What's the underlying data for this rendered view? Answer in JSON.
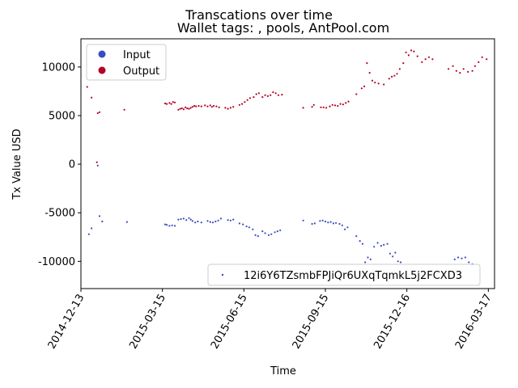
{
  "chart_data": {
    "type": "scatter",
    "title": "Transcations over time",
    "subtitle": "Wallet tags: , pools, AntPool.com",
    "xlabel": "Time",
    "ylabel": "Tx Value USD",
    "x_ticks": [
      "2014-12-13",
      "2015-03-15",
      "2015-06-15",
      "2015-09-15",
      "2015-12-16",
      "2016-03-17"
    ],
    "xlim": [
      "2014-12-13",
      "2016-03-24"
    ],
    "ylim": [
      -12800,
      12900
    ],
    "y_ticks": [
      -10000,
      -5000,
      0,
      5000,
      10000
    ],
    "grid": false,
    "legend_top_left": {
      "entries": [
        {
          "label": "Input",
          "color": "#3b4cc0"
        },
        {
          "label": "Output",
          "color": "#b40426"
        }
      ]
    },
    "legend_bottom_right": {
      "entries": [
        {
          "label": "12i6Y6TZsmbFPJiQr6UXqTqmkL5j2FCXD3",
          "color": "#3b4cc0"
        }
      ]
    },
    "series": [
      {
        "name": "Output",
        "color": "#b40426",
        "points": [
          [
            "2014-12-20",
            7950
          ],
          [
            "2014-12-25",
            6850
          ],
          [
            "2014-12-31",
            200
          ],
          [
            "2015-01-01",
            5250
          ],
          [
            "2015-01-03",
            5350
          ],
          [
            "2015-01-31",
            5600
          ],
          [
            "2015-03-18",
            6250
          ],
          [
            "2015-03-20",
            6200
          ],
          [
            "2015-03-23",
            6300
          ],
          [
            "2015-03-25",
            6200
          ],
          [
            "2015-03-27",
            6400
          ],
          [
            "2015-03-29",
            6350
          ],
          [
            "2015-04-02",
            5600
          ],
          [
            "2015-04-04",
            5700
          ],
          [
            "2015-04-06",
            5750
          ],
          [
            "2015-04-08",
            5650
          ],
          [
            "2015-04-10",
            5850
          ],
          [
            "2015-04-12",
            5750
          ],
          [
            "2015-04-14",
            5700
          ],
          [
            "2015-04-16",
            5800
          ],
          [
            "2015-04-18",
            5900
          ],
          [
            "2015-04-20",
            6000
          ],
          [
            "2015-04-22",
            5950
          ],
          [
            "2015-04-25",
            6000
          ],
          [
            "2015-04-28",
            5950
          ],
          [
            "2015-05-02",
            6050
          ],
          [
            "2015-05-05",
            5950
          ],
          [
            "2015-05-08",
            6050
          ],
          [
            "2015-05-10",
            5900
          ],
          [
            "2015-05-12",
            6000
          ],
          [
            "2015-05-15",
            5950
          ],
          [
            "2015-05-18",
            5850
          ],
          [
            "2015-05-25",
            5800
          ],
          [
            "2015-05-28",
            5700
          ],
          [
            "2015-05-31",
            5800
          ],
          [
            "2015-06-03",
            5900
          ],
          [
            "2015-06-10",
            6100
          ],
          [
            "2015-06-13",
            6200
          ],
          [
            "2015-06-16",
            6400
          ],
          [
            "2015-06-19",
            6600
          ],
          [
            "2015-06-22",
            6800
          ],
          [
            "2015-06-26",
            6900
          ],
          [
            "2015-06-29",
            7200
          ],
          [
            "2015-07-02",
            7300
          ],
          [
            "2015-07-06",
            6900
          ],
          [
            "2015-07-09",
            7100
          ],
          [
            "2015-07-12",
            7000
          ],
          [
            "2015-07-15",
            7100
          ],
          [
            "2015-07-18",
            7400
          ],
          [
            "2015-07-21",
            7300
          ],
          [
            "2015-07-24",
            7100
          ],
          [
            "2015-07-28",
            7150
          ],
          [
            "2015-08-21",
            5800
          ],
          [
            "2015-08-31",
            5900
          ],
          [
            "2015-09-02",
            6100
          ],
          [
            "2015-09-10",
            5850
          ],
          [
            "2015-09-13",
            5850
          ],
          [
            "2015-09-16",
            5800
          ],
          [
            "2015-09-20",
            5950
          ],
          [
            "2015-09-23",
            6100
          ],
          [
            "2015-09-26",
            6050
          ],
          [
            "2015-09-29",
            6000
          ],
          [
            "2015-10-02",
            6200
          ],
          [
            "2015-10-05",
            6150
          ],
          [
            "2015-10-08",
            6300
          ],
          [
            "2015-10-11",
            6450
          ],
          [
            "2015-10-20",
            7200
          ],
          [
            "2015-10-26",
            7800
          ],
          [
            "2015-10-29",
            8000
          ],
          [
            "2015-11-01",
            10400
          ],
          [
            "2015-11-04",
            9400
          ],
          [
            "2015-11-07",
            8600
          ],
          [
            "2015-11-10",
            8400
          ],
          [
            "2015-11-14",
            8300
          ],
          [
            "2015-11-20",
            8200
          ],
          [
            "2015-11-26",
            8800
          ],
          [
            "2015-11-29",
            9000
          ],
          [
            "2015-12-02",
            9100
          ],
          [
            "2015-12-05",
            9300
          ],
          [
            "2015-12-08",
            9800
          ],
          [
            "2015-12-12",
            10400
          ],
          [
            "2015-12-15",
            11500
          ],
          [
            "2015-12-18",
            11200
          ],
          [
            "2015-12-21",
            11700
          ],
          [
            "2015-12-24",
            11600
          ],
          [
            "2015-12-28",
            11100
          ],
          [
            "2016-01-02",
            10500
          ],
          [
            "2016-01-06",
            10800
          ],
          [
            "2016-01-10",
            11000
          ],
          [
            "2016-01-14",
            10800
          ],
          [
            "2016-02-01",
            9800
          ],
          [
            "2016-02-06",
            10100
          ],
          [
            "2016-02-10",
            9600
          ],
          [
            "2016-02-14",
            9400
          ],
          [
            "2016-02-18",
            9800
          ],
          [
            "2016-02-23",
            9500
          ],
          [
            "2016-02-28",
            9600
          ],
          [
            "2016-03-02",
            10100
          ],
          [
            "2016-03-06",
            10500
          ],
          [
            "2016-03-10",
            11000
          ],
          [
            "2016-03-15",
            10800
          ]
        ]
      },
      {
        "name": "Input",
        "color": "#3b4cc0",
        "points": [
          [
            "2014-12-22",
            -7200
          ],
          [
            "2014-12-25",
            -6600
          ],
          [
            "2015-01-01",
            -150
          ],
          [
            "2015-01-03",
            -5350
          ],
          [
            "2015-01-06",
            -5900
          ],
          [
            "2015-02-03",
            -5950
          ],
          [
            "2015-03-18",
            -6200
          ],
          [
            "2015-03-20",
            -6250
          ],
          [
            "2015-03-23",
            -6350
          ],
          [
            "2015-03-26",
            -6300
          ],
          [
            "2015-03-29",
            -6350
          ],
          [
            "2015-04-02",
            -5700
          ],
          [
            "2015-04-05",
            -5650
          ],
          [
            "2015-04-08",
            -5600
          ],
          [
            "2015-04-11",
            -5750
          ],
          [
            "2015-04-14",
            -5550
          ],
          [
            "2015-04-16",
            -5700
          ],
          [
            "2015-04-18",
            -5850
          ],
          [
            "2015-04-21",
            -6000
          ],
          [
            "2015-04-24",
            -5900
          ],
          [
            "2015-04-28",
            -6000
          ],
          [
            "2015-05-05",
            -5850
          ],
          [
            "2015-05-08",
            -5950
          ],
          [
            "2015-05-11",
            -6000
          ],
          [
            "2015-05-14",
            -5900
          ],
          [
            "2015-05-17",
            -5800
          ],
          [
            "2015-05-20",
            -5600
          ],
          [
            "2015-05-28",
            -5750
          ],
          [
            "2015-05-31",
            -5800
          ],
          [
            "2015-06-03",
            -5700
          ],
          [
            "2015-06-10",
            -6100
          ],
          [
            "2015-06-14",
            -6200
          ],
          [
            "2015-06-18",
            -6400
          ],
          [
            "2015-06-21",
            -6500
          ],
          [
            "2015-06-25",
            -6700
          ],
          [
            "2015-06-28",
            -7300
          ],
          [
            "2015-07-01",
            -7400
          ],
          [
            "2015-07-06",
            -6900
          ],
          [
            "2015-07-09",
            -7100
          ],
          [
            "2015-07-13",
            -7300
          ],
          [
            "2015-07-16",
            -7200
          ],
          [
            "2015-07-20",
            -7000
          ],
          [
            "2015-07-23",
            -6900
          ],
          [
            "2015-07-26",
            -6800
          ],
          [
            "2015-08-21",
            -5800
          ],
          [
            "2015-08-31",
            -6150
          ],
          [
            "2015-09-03",
            -6100
          ],
          [
            "2015-09-09",
            -5850
          ],
          [
            "2015-09-12",
            -5800
          ],
          [
            "2015-09-15",
            -5900
          ],
          [
            "2015-09-18",
            -6000
          ],
          [
            "2015-09-21",
            -5950
          ],
          [
            "2015-09-24",
            -6100
          ],
          [
            "2015-09-27",
            -6050
          ],
          [
            "2015-10-01",
            -6150
          ],
          [
            "2015-10-04",
            -6300
          ],
          [
            "2015-10-07",
            -6700
          ],
          [
            "2015-10-10",
            -6500
          ],
          [
            "2015-10-20",
            -7400
          ],
          [
            "2015-10-24",
            -7900
          ],
          [
            "2015-10-27",
            -8200
          ],
          [
            "2015-10-30",
            -10100
          ],
          [
            "2015-11-02",
            -9600
          ],
          [
            "2015-11-05",
            -9800
          ],
          [
            "2015-11-09",
            -8500
          ],
          [
            "2015-11-13",
            -8100
          ],
          [
            "2015-11-17",
            -8400
          ],
          [
            "2015-11-20",
            -8300
          ],
          [
            "2015-11-24",
            -8200
          ],
          [
            "2015-11-27",
            -9200
          ],
          [
            "2015-11-30",
            -9500
          ],
          [
            "2015-12-03",
            -9100
          ],
          [
            "2015-12-06",
            -10000
          ],
          [
            "2015-12-09",
            -10100
          ],
          [
            "2016-02-08",
            -9800
          ],
          [
            "2016-02-12",
            -9600
          ],
          [
            "2016-02-16",
            -9700
          ],
          [
            "2016-02-20",
            -9600
          ],
          [
            "2016-02-24",
            -10100
          ],
          [
            "2016-02-28",
            -10300
          ]
        ]
      }
    ]
  }
}
